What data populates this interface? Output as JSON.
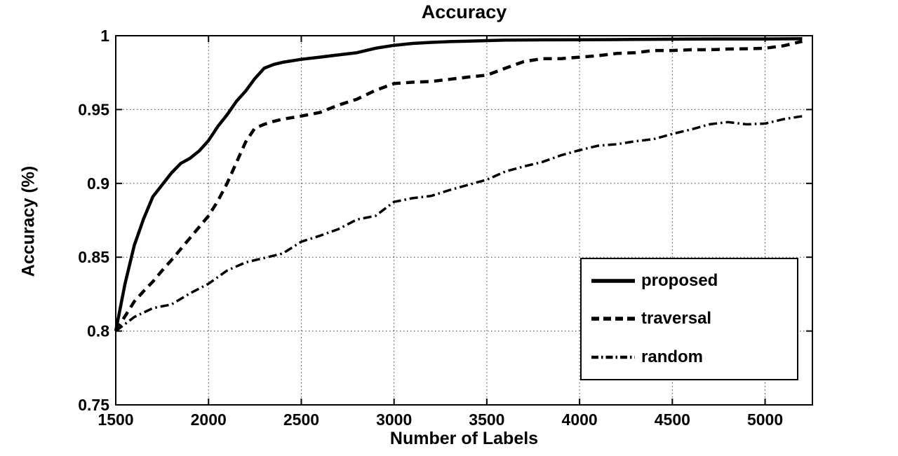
{
  "figure": {
    "background": "#ffffff",
    "ink_color": "#000000"
  },
  "chart_data": {
    "type": "line",
    "title": "Accuracy",
    "xlabel": "Number of Labels",
    "ylabel": "Accuracy  (%)",
    "x_range": [
      1500,
      5255
    ],
    "y_range": [
      0.75,
      1.0
    ],
    "x_ticks": [
      1500,
      2000,
      2500,
      3000,
      3500,
      4000,
      4500,
      5000
    ],
    "x_tick_labels": [
      "1500",
      "2000",
      "2500",
      "3000",
      "3500",
      "4000",
      "4500",
      "5000"
    ],
    "y_ticks": [
      0.75,
      0.8,
      0.85,
      0.9,
      0.95,
      1
    ],
    "y_tick_labels": [
      "0.75",
      "0.8",
      "0.85",
      "0.9",
      "0.95",
      "1"
    ],
    "grid": true,
    "grid_style": "dotted",
    "legend_position": "lower right",
    "series": [
      {
        "name": "proposed",
        "style": "solid",
        "color": "#000000",
        "points": [
          [
            1500,
            0.8
          ],
          [
            1550,
            0.832
          ],
          [
            1600,
            0.858
          ],
          [
            1650,
            0.876
          ],
          [
            1700,
            0.891
          ],
          [
            1750,
            0.899
          ],
          [
            1800,
            0.907
          ],
          [
            1850,
            0.9135
          ],
          [
            1900,
            0.917
          ],
          [
            1950,
            0.922
          ],
          [
            2000,
            0.929
          ],
          [
            2050,
            0.9385
          ],
          [
            2100,
            0.9465
          ],
          [
            2150,
            0.9555
          ],
          [
            2200,
            0.9625
          ],
          [
            2250,
            0.971
          ],
          [
            2300,
            0.978
          ],
          [
            2350,
            0.9805
          ],
          [
            2400,
            0.982
          ],
          [
            2500,
            0.984
          ],
          [
            2600,
            0.9855
          ],
          [
            2700,
            0.987
          ],
          [
            2800,
            0.9885
          ],
          [
            2900,
            0.9915
          ],
          [
            3000,
            0.9935
          ],
          [
            3100,
            0.9948
          ],
          [
            3200,
            0.9955
          ],
          [
            3300,
            0.996
          ],
          [
            3400,
            0.9963
          ],
          [
            3500,
            0.9967
          ],
          [
            3600,
            0.997
          ],
          [
            3800,
            0.9972
          ],
          [
            4000,
            0.9973
          ],
          [
            4200,
            0.9974
          ],
          [
            4400,
            0.9976
          ],
          [
            4600,
            0.9977
          ],
          [
            4800,
            0.9978
          ],
          [
            5000,
            0.9978
          ],
          [
            5200,
            0.998
          ]
        ]
      },
      {
        "name": "traversal",
        "style": "dashed",
        "color": "#000000",
        "points": [
          [
            1500,
            0.8
          ],
          [
            1550,
            0.81
          ],
          [
            1600,
            0.82
          ],
          [
            1650,
            0.827
          ],
          [
            1700,
            0.8335
          ],
          [
            1750,
            0.841
          ],
          [
            1800,
            0.848
          ],
          [
            1850,
            0.8555
          ],
          [
            1900,
            0.863
          ],
          [
            1950,
            0.8705
          ],
          [
            2000,
            0.878
          ],
          [
            2050,
            0.888
          ],
          [
            2100,
            0.9
          ],
          [
            2150,
            0.914
          ],
          [
            2200,
            0.928
          ],
          [
            2250,
            0.9375
          ],
          [
            2300,
            0.94
          ],
          [
            2350,
            0.942
          ],
          [
            2400,
            0.9435
          ],
          [
            2500,
            0.9456
          ],
          [
            2600,
            0.948
          ],
          [
            2700,
            0.953
          ],
          [
            2800,
            0.957
          ],
          [
            2900,
            0.963
          ],
          [
            3000,
            0.9676
          ],
          [
            3100,
            0.9685
          ],
          [
            3200,
            0.969
          ],
          [
            3300,
            0.9705
          ],
          [
            3400,
            0.972
          ],
          [
            3500,
            0.9733
          ],
          [
            3600,
            0.978
          ],
          [
            3700,
            0.9825
          ],
          [
            3800,
            0.9845
          ],
          [
            3900,
            0.9845
          ],
          [
            4000,
            0.9855
          ],
          [
            4100,
            0.9865
          ],
          [
            4200,
            0.988
          ],
          [
            4300,
            0.9885
          ],
          [
            4400,
            0.99
          ],
          [
            4500,
            0.99
          ],
          [
            4600,
            0.9905
          ],
          [
            4700,
            0.9905
          ],
          [
            4800,
            0.991
          ],
          [
            4900,
            0.9912
          ],
          [
            5000,
            0.9915
          ],
          [
            5100,
            0.9932
          ],
          [
            5200,
            0.9962
          ]
        ]
      },
      {
        "name": "random",
        "style": "dashdot",
        "color": "#000000",
        "points": [
          [
            1500,
            0.8
          ],
          [
            1600,
            0.8095
          ],
          [
            1700,
            0.8155
          ],
          [
            1800,
            0.818
          ],
          [
            1900,
            0.8255
          ],
          [
            2000,
            0.832
          ],
          [
            2100,
            0.841
          ],
          [
            2200,
            0.8465
          ],
          [
            2300,
            0.8495
          ],
          [
            2400,
            0.8525
          ],
          [
            2500,
            0.8605
          ],
          [
            2600,
            0.8645
          ],
          [
            2700,
            0.869
          ],
          [
            2800,
            0.8755
          ],
          [
            2900,
            0.878
          ],
          [
            3000,
            0.8875
          ],
          [
            3100,
            0.89
          ],
          [
            3200,
            0.8915
          ],
          [
            3300,
            0.8955
          ],
          [
            3400,
            0.899
          ],
          [
            3500,
            0.9025
          ],
          [
            3600,
            0.908
          ],
          [
            3700,
            0.9115
          ],
          [
            3800,
            0.9145
          ],
          [
            3900,
            0.919
          ],
          [
            4000,
            0.9225
          ],
          [
            4100,
            0.9255
          ],
          [
            4200,
            0.9265
          ],
          [
            4300,
            0.9285
          ],
          [
            4400,
            0.93
          ],
          [
            4500,
            0.9335
          ],
          [
            4600,
            0.9365
          ],
          [
            4700,
            0.94
          ],
          [
            4800,
            0.9415
          ],
          [
            4900,
            0.94
          ],
          [
            5000,
            0.9405
          ],
          [
            5100,
            0.9435
          ],
          [
            5200,
            0.9455
          ]
        ]
      }
    ]
  }
}
